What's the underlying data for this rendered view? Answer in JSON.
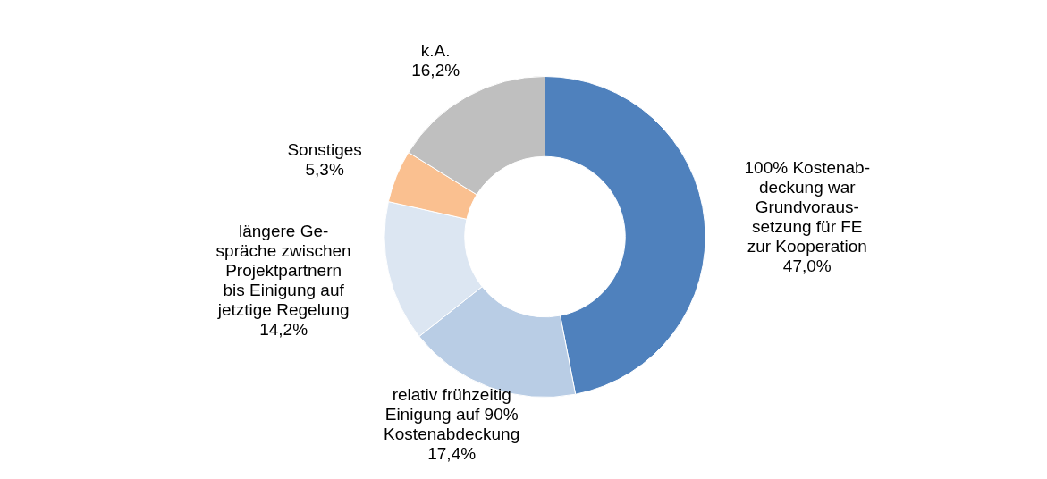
{
  "chart_data": {
    "type": "donut",
    "categories": [
      "100% Kostenab-\ndeckung war\nGrundvoraus-\nsetzung für FE\nzur Kooperation",
      "relativ frühzeitig\nEinigung auf 90%\nKostenabdeckung",
      "längere Ge-\nspräche zwischen\nProjektpartnern\nbis Einigung auf\njetztige Regelung",
      "Sonstiges",
      "k.A."
    ],
    "values": [
      47.0,
      17.4,
      14.2,
      5.3,
      16.2
    ],
    "value_labels": [
      "47,0%",
      "17,4%",
      "14,2%",
      "5,3%",
      "16,2%"
    ],
    "colors": [
      "#4f81bd",
      "#b9cde5",
      "#dce6f2",
      "#fac090",
      "#bfbfbf"
    ],
    "legend": false
  }
}
